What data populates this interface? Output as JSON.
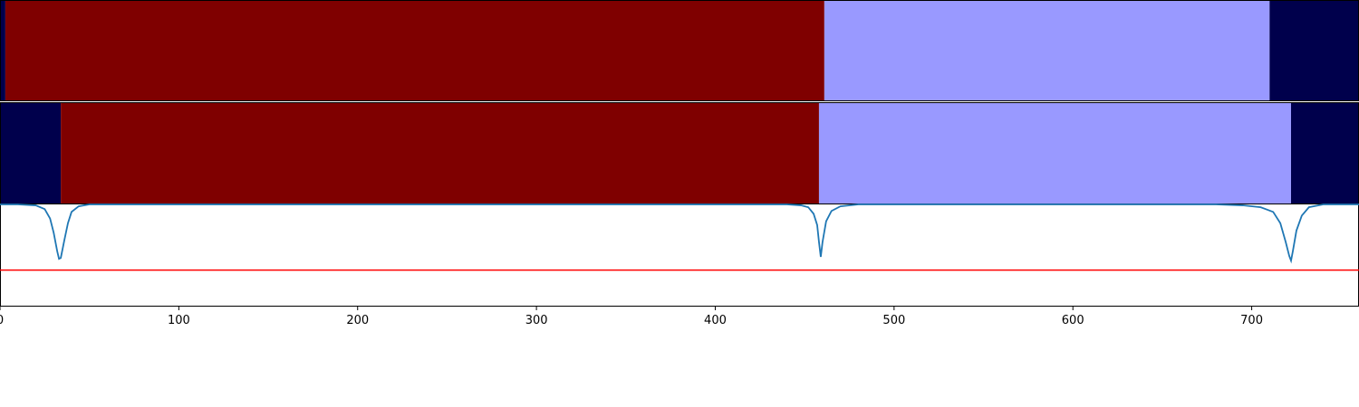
{
  "colors": {
    "dark_navy": "#00004c",
    "dark_red": "#7f0000",
    "light_blue": "#9999ff",
    "curve_blue": "#1f77b4",
    "threshold_red": "#ff0000",
    "axis_black": "#000000"
  },
  "chart_data": {
    "type": "segmentation-strips-with-line",
    "x_range": [
      0,
      760
    ],
    "grid": false,
    "xticks": [
      0,
      100,
      200,
      300,
      400,
      500,
      600,
      700
    ],
    "xtick_labels": [
      "0",
      "100",
      "200",
      "300",
      "400",
      "500",
      "600",
      "700"
    ],
    "strips": [
      {
        "segments": [
          {
            "start": 0,
            "end": 3,
            "color": "dark_navy"
          },
          {
            "start": 3,
            "end": 461,
            "color": "dark_red"
          },
          {
            "start": 461,
            "end": 710,
            "color": "light_blue"
          },
          {
            "start": 710,
            "end": 760,
            "color": "dark_navy"
          }
        ]
      },
      {
        "segments": [
          {
            "start": 0,
            "end": 34,
            "color": "dark_navy"
          },
          {
            "start": 34,
            "end": 458,
            "color": "dark_red"
          },
          {
            "start": 458,
            "end": 722,
            "color": "light_blue"
          },
          {
            "start": 722,
            "end": 760,
            "color": "dark_navy"
          }
        ]
      }
    ],
    "line_panel": {
      "ylim": [
        -0.08,
        1.0
      ],
      "threshold": 0.3,
      "series": {
        "x": [
          0,
          10,
          20,
          25,
          28,
          30,
          32,
          33,
          34,
          36,
          38,
          40,
          44,
          50,
          60,
          100,
          200,
          300,
          400,
          440,
          448,
          452,
          455,
          457,
          458,
          459,
          460,
          462,
          465,
          470,
          480,
          500,
          600,
          680,
          695,
          705,
          712,
          716,
          719,
          721,
          722,
          723,
          725,
          728,
          732,
          740,
          760
        ],
        "y": [
          1.0,
          1.0,
          0.99,
          0.95,
          0.85,
          0.7,
          0.5,
          0.42,
          0.43,
          0.62,
          0.8,
          0.92,
          0.98,
          1.0,
          1.0,
          1.0,
          1.0,
          1.0,
          1.0,
          1.0,
          0.99,
          0.97,
          0.9,
          0.78,
          0.6,
          0.44,
          0.6,
          0.82,
          0.93,
          0.98,
          1.0,
          1.0,
          1.0,
          1.0,
          0.99,
          0.97,
          0.92,
          0.8,
          0.6,
          0.45,
          0.4,
          0.5,
          0.72,
          0.88,
          0.97,
          1.0,
          1.0
        ]
      }
    }
  }
}
